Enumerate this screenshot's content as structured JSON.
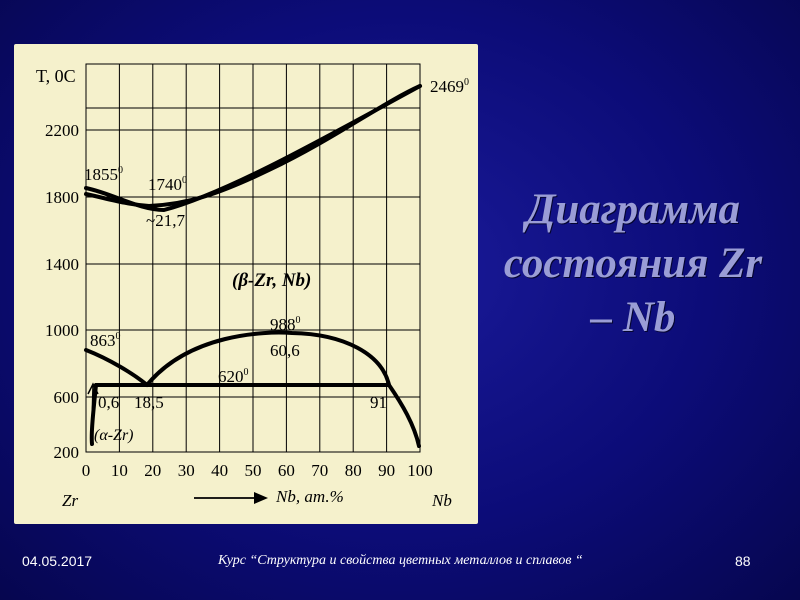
{
  "slide": {
    "title": "Диаграмма состояния Zr – Nb",
    "footer_date": "04.05.2017",
    "footer_course": "Курс “Структура и свойства цветных металлов и сплавов “",
    "page_number": "88",
    "colors": {
      "background": "#0c0c78",
      "title": "#9a9dd6",
      "panel": "#f5f1cc"
    }
  },
  "diagram": {
    "y_axis_title": "T,  0C",
    "y_ticks": [
      "200",
      "600",
      "1000",
      "1400",
      "1800",
      "2200"
    ],
    "x_ticks": [
      "0",
      "10",
      "20",
      "30",
      "40",
      "50",
      "60",
      "70",
      "80",
      "90",
      "100"
    ],
    "x_axis_left_element": "Zr",
    "x_axis_right_element": "Nb",
    "x_axis_label": "Nb, ат.%",
    "phase_beta": "(β-Zr, Nb)",
    "phase_alpha": "(α-Zr)",
    "annotations": {
      "t_zr_melt": "1855",
      "t_min": "1740",
      "comp_min": "~21,7",
      "t_nb_melt": "2469",
      "t_zr_transform": "863",
      "t_miscibility": "988",
      "comp_miscibility": "60,6",
      "t_monotectoid": "620",
      "comp_alpha": "0,6",
      "comp_monotectoid": "18,5",
      "comp_nb_side": "91"
    },
    "degree_mark": "0"
  }
}
